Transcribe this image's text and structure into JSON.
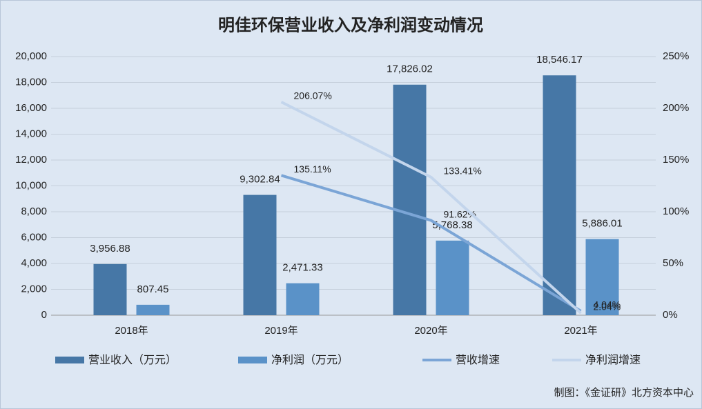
{
  "chart_data": {
    "type": "bar_line",
    "title": "明佳环保营业收入及净利润变动情况",
    "source": "制图：《金证研》北方资本中心",
    "categories": [
      "2018年",
      "2019年",
      "2020年",
      "2021年"
    ],
    "series": [
      {
        "name": "营业收入（万元）",
        "type": "bar",
        "color": "#4677a6",
        "values": [
          3956.88,
          9302.84,
          17826.02,
          18546.17
        ],
        "value_labels": [
          "3,956.88",
          "9,302.84",
          "17,826.02",
          "18,546.17"
        ]
      },
      {
        "name": "净利润（万元）",
        "type": "bar",
        "color": "#5a92c8",
        "values": [
          807.45,
          2471.33,
          5768.38,
          5886.01
        ],
        "value_labels": [
          "807.45",
          "2,471.33",
          "5,768.38",
          "5,886.01"
        ]
      },
      {
        "name": "营收增速",
        "type": "line",
        "axis": "y2",
        "color": "#7ba5d6",
        "values": [
          null,
          135.11,
          91.62,
          4.04
        ],
        "value_labels": [
          null,
          "135.11%",
          "91.62%",
          "4.04%"
        ]
      },
      {
        "name": "净利润增速",
        "type": "line",
        "axis": "y2",
        "color": "#c3d5ec",
        "values": [
          null,
          206.07,
          133.41,
          2.04
        ],
        "value_labels": [
          null,
          "206.07%",
          "133.41%",
          "2.04%"
        ]
      }
    ],
    "ylim": [
      0,
      20000
    ],
    "yticks": [
      0,
      {
        "value": 2000,
        "label": "2,000"
      },
      {
        "value": 4000,
        "label": "4,000"
      },
      {
        "value": 6000,
        "label": "6,000"
      },
      {
        "value": 8000,
        "label": "8,000"
      },
      {
        "value": 10000,
        "label": "10,000"
      },
      {
        "value": 12000,
        "label": "12,000"
      },
      {
        "value": 14000,
        "label": "14,000"
      },
      {
        "value": 16000,
        "label": "16,000"
      },
      {
        "value": 18000,
        "label": "18,000"
      },
      {
        "value": 20000,
        "label": "20,000"
      }
    ],
    "y2lim": [
      0,
      250
    ],
    "y2ticks": [
      {
        "value": 0,
        "label": "0%"
      },
      {
        "value": 50,
        "label": "50%"
      },
      {
        "value": 100,
        "label": "100%"
      },
      {
        "value": 150,
        "label": "150%"
      },
      {
        "value": 200,
        "label": "200%"
      },
      {
        "value": 250,
        "label": "250%"
      }
    ],
    "grid": true
  }
}
